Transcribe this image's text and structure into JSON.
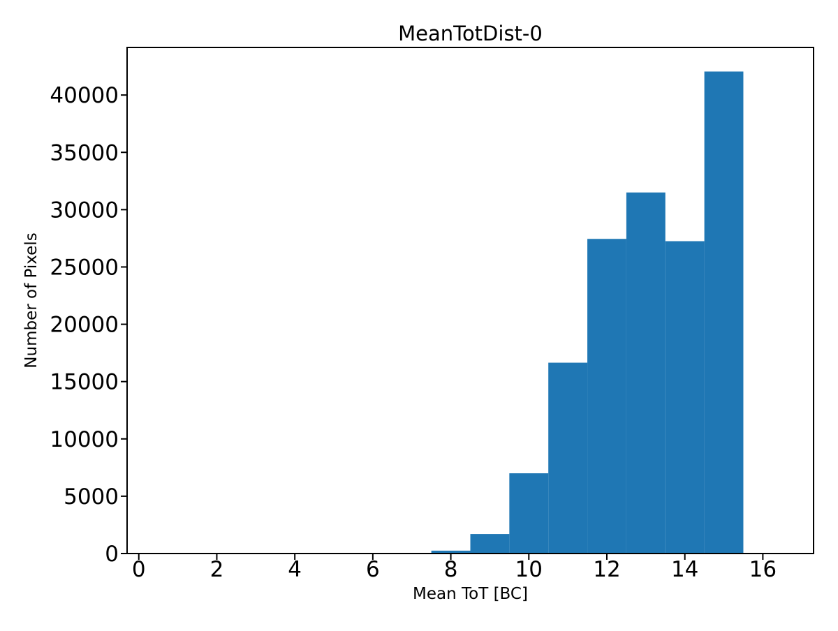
{
  "chart_data": {
    "type": "bar",
    "subtype": "histogram",
    "title": "MeanTotDist-0",
    "xlabel": "Mean ToT [BC]",
    "ylabel": "Number of Pixels",
    "bar_color": "#1f77b4",
    "grid": false,
    "legend_position": "none",
    "bin_edges": [
      0.5,
      1.5,
      2.5,
      3.5,
      4.5,
      5.5,
      6.5,
      7.5,
      8.5,
      9.5,
      10.5,
      11.5,
      12.5,
      13.5,
      14.5,
      15.5,
      16.5
    ],
    "counts": [
      0,
      0,
      0,
      0,
      0,
      0,
      0,
      250,
      1700,
      7000,
      16650,
      27450,
      31500,
      27250,
      42050,
      0
    ],
    "xlim": [
      -0.3,
      17.3
    ],
    "ylim": [
      0,
      44150
    ],
    "xticks": [
      0,
      2,
      4,
      6,
      8,
      10,
      12,
      14,
      16
    ],
    "yticks": [
      0,
      5000,
      10000,
      15000,
      20000,
      25000,
      30000,
      35000,
      40000
    ]
  }
}
